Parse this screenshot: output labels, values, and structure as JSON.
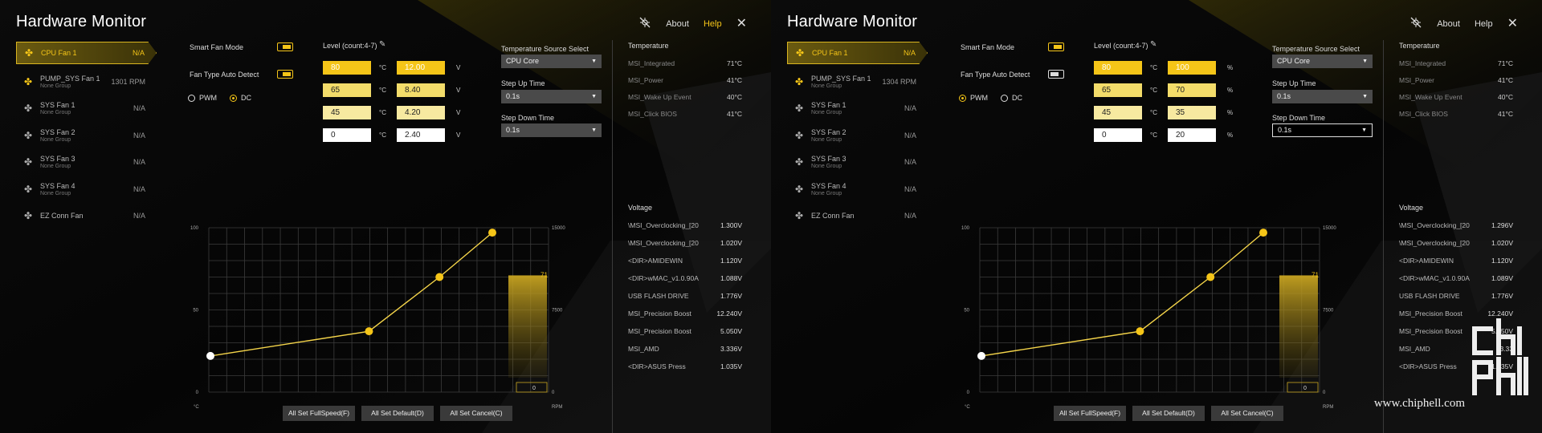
{
  "panels": [
    {
      "title": "Hardware Monitor",
      "topbar": {
        "about": "About",
        "help": "Help"
      },
      "fans": [
        {
          "name": "CPU Fan 1",
          "group": "",
          "value": "N/A",
          "active": true
        },
        {
          "name": "PUMP_SYS Fan 1",
          "group": "None Group",
          "value": "1301 RPM"
        },
        {
          "name": "SYS Fan 1",
          "group": "None Group",
          "value": "N/A"
        },
        {
          "name": "SYS Fan 2",
          "group": "None Group",
          "value": "N/A"
        },
        {
          "name": "SYS Fan 3",
          "group": "None Group",
          "value": "N/A"
        },
        {
          "name": "SYS Fan 4",
          "group": "None Group",
          "value": "N/A"
        },
        {
          "name": "EZ Conn Fan",
          "group": "",
          "value": "N/A"
        }
      ],
      "smart_fan_mode": "Smart Fan Mode",
      "fan_type_auto_detect": "Fan Type Auto Detect",
      "auto_detect_on": true,
      "mode_pwm": "PWM",
      "mode_dc": "DC",
      "selected_mode": "DC",
      "level_label": "Level (count:4-7)",
      "levels": [
        {
          "temp": "80",
          "temp_unit": "°C",
          "out": "12.00",
          "out_unit": "V"
        },
        {
          "temp": "65",
          "temp_unit": "°C",
          "out": "8.40",
          "out_unit": "V"
        },
        {
          "temp": "45",
          "temp_unit": "°C",
          "out": "4.20",
          "out_unit": "V"
        },
        {
          "temp": "0",
          "temp_unit": "°C",
          "out": "2.40",
          "out_unit": "V"
        }
      ],
      "temp_source_label": "Temperature Source Select",
      "temp_source": "CPU Core",
      "step_up_label": "Step Up Time",
      "step_up": "0.1s",
      "step_down_label": "Step Down Time",
      "step_down": "0.1s",
      "temperature_head": "Temperature",
      "temperatures": [
        {
          "name": "MSI_Integrated",
          "value": "71°C"
        },
        {
          "name": "MSI_Power",
          "value": "41°C"
        },
        {
          "name": "MSI_Wake Up Event",
          "value": "40°C"
        },
        {
          "name": "MSI_Click BIOS",
          "value": "41°C"
        }
      ],
      "voltage_head": "Voltage",
      "voltages": [
        {
          "name": "\\MSI_Overclocking_[20",
          "value": "1.300V"
        },
        {
          "name": "\\MSI_Overclocking_[20",
          "value": "1.020V"
        },
        {
          "name": "<DIR>AMIDEWIN",
          "value": "1.120V"
        },
        {
          "name": "<DIR>wMAC_v1.0.90A",
          "value": "1.088V"
        },
        {
          "name": "USB FLASH DRIVE",
          "value": "1.776V"
        },
        {
          "name": "MSI_Precision Boost",
          "value": "12.240V"
        },
        {
          "name": "MSI_Precision Boost",
          "value": "5.050V"
        },
        {
          "name": "MSI_AMD",
          "value": "3.336V"
        },
        {
          "name": "<DIR>ASUS Press",
          "value": "1.035V"
        }
      ],
      "buttons": {
        "full": "All Set FullSpeed(F)",
        "default": "All Set Default(D)",
        "cancel": "All Set Cancel(C)"
      },
      "chart": {
        "y_left_ticks": [
          "100",
          "50",
          "0"
        ],
        "y_left_unit": "°C",
        "y_right_ticks": [
          "15000",
          "7500",
          "0"
        ],
        "y_right_unit": "RPM",
        "current_temp": "71",
        "current_rpm": "0",
        "points": [
          [
            0,
            22
          ],
          [
            45,
            37
          ],
          [
            65,
            70
          ],
          [
            80,
            97
          ]
        ]
      }
    },
    {
      "title": "Hardware Monitor",
      "topbar": {
        "about": "About",
        "help": "Help"
      },
      "fans": [
        {
          "name": "CPU Fan 1",
          "group": "",
          "value": "N/A",
          "active": true
        },
        {
          "name": "PUMP_SYS Fan 1",
          "group": "None Group",
          "value": "1304 RPM"
        },
        {
          "name": "SYS Fan 1",
          "group": "None Group",
          "value": "N/A"
        },
        {
          "name": "SYS Fan 2",
          "group": "None Group",
          "value": "N/A"
        },
        {
          "name": "SYS Fan 3",
          "group": "None Group",
          "value": "N/A"
        },
        {
          "name": "SYS Fan 4",
          "group": "None Group",
          "value": "N/A"
        },
        {
          "name": "EZ Conn Fan",
          "group": "",
          "value": "N/A"
        }
      ],
      "smart_fan_mode": "Smart Fan Mode",
      "fan_type_auto_detect": "Fan Type Auto Detect",
      "auto_detect_on": false,
      "mode_pwm": "PWM",
      "mode_dc": "DC",
      "selected_mode": "PWM",
      "level_label": "Level (count:4-7)",
      "levels": [
        {
          "temp": "80",
          "temp_unit": "°C",
          "out": "100",
          "out_unit": "%"
        },
        {
          "temp": "65",
          "temp_unit": "°C",
          "out": "70",
          "out_unit": "%"
        },
        {
          "temp": "45",
          "temp_unit": "°C",
          "out": "35",
          "out_unit": "%"
        },
        {
          "temp": "0",
          "temp_unit": "°C",
          "out": "20",
          "out_unit": "%"
        }
      ],
      "temp_source_label": "Temperature Source Select",
      "temp_source": "CPU Core",
      "step_up_label": "Step Up Time",
      "step_up": "0.1s",
      "step_down_label": "Step Down Time",
      "step_down": "0.1s",
      "temperature_head": "Temperature",
      "temperatures": [
        {
          "name": "MSI_Integrated",
          "value": "71°C"
        },
        {
          "name": "MSI_Power",
          "value": "41°C"
        },
        {
          "name": "MSI_Wake Up Event",
          "value": "40°C"
        },
        {
          "name": "MSI_Click BIOS",
          "value": "41°C"
        }
      ],
      "voltage_head": "Voltage",
      "voltages": [
        {
          "name": "\\MSI_Overclocking_[20",
          "value": "1.296V"
        },
        {
          "name": "\\MSI_Overclocking_[20",
          "value": "1.020V"
        },
        {
          "name": "<DIR>AMIDEWIN",
          "value": "1.120V"
        },
        {
          "name": "<DIR>wMAC_v1.0.90A",
          "value": "1.089V"
        },
        {
          "name": "USB FLASH DRIVE",
          "value": "1.776V"
        },
        {
          "name": "MSI_Precision Boost",
          "value": "12.240V"
        },
        {
          "name": "MSI_Precision Boost",
          "value": "5.050V"
        },
        {
          "name": "MSI_AMD",
          "value": "3.33"
        },
        {
          "name": "<DIR>ASUS Press",
          "value": "1.035V"
        }
      ],
      "buttons": {
        "full": "All Set FullSpeed(F)",
        "default": "All Set Default(D)",
        "cancel": "All Set Cancel(C)"
      },
      "chart": {
        "y_left_ticks": [
          "100",
          "50",
          "0"
        ],
        "y_left_unit": "°C",
        "y_right_ticks": [
          "15000",
          "7500",
          "0"
        ],
        "y_right_unit": "RPM",
        "current_temp": "71",
        "current_rpm": "0",
        "points": [
          [
            0,
            22
          ],
          [
            45,
            37
          ],
          [
            65,
            70
          ],
          [
            80,
            97
          ]
        ]
      }
    }
  ],
  "watermark": "www.chiphell.com",
  "colors": {
    "accent": "#f5c518",
    "box_light": "#f7e9a0",
    "box_mid": "#f3dc6a"
  }
}
